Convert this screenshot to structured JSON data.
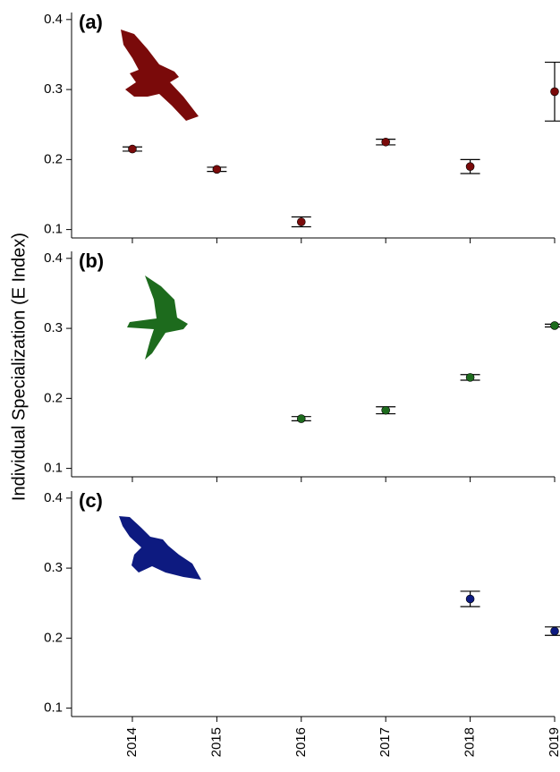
{
  "chart_data": [
    {
      "type": "scatter",
      "label": "(a)",
      "ylabel": "Individual Specialization (E Index)",
      "x": [
        2014,
        2015,
        2016,
        2017,
        2018,
        2019
      ],
      "series": [
        {
          "color": "#7a0a0a",
          "values": [
            0.215,
            0.186,
            0.111,
            0.225,
            0.19,
            0.297
          ],
          "errors": [
            0.003,
            0.003,
            0.007,
            0.004,
            0.01,
            0.042
          ]
        }
      ],
      "xlim": [
        2013.28,
        2019
      ],
      "xticks": [
        2014,
        2015,
        2016,
        2017,
        2018,
        2019
      ],
      "ylim": [
        0.088,
        0.41
      ],
      "yticks": [
        0.1,
        0.2,
        0.3,
        0.4
      ]
    },
    {
      "type": "scatter",
      "label": "(b)",
      "x": [
        2016,
        2017,
        2018,
        2019
      ],
      "series": [
        {
          "color": "#1d6b1d",
          "values": [
            0.171,
            0.183,
            0.23,
            0.304
          ],
          "errors": [
            0.003,
            0.005,
            0.004,
            0.002
          ]
        }
      ],
      "xlim": [
        2013.28,
        2019
      ],
      "xticks": [
        2014,
        2015,
        2016,
        2017,
        2018,
        2019
      ],
      "ylim": [
        0.088,
        0.41
      ],
      "yticks": [
        0.1,
        0.2,
        0.3,
        0.4
      ]
    },
    {
      "type": "scatter",
      "label": "(c)",
      "x": [
        2018,
        2019
      ],
      "series": [
        {
          "color": "#0d1a80",
          "values": [
            0.256,
            0.21
          ],
          "errors": [
            0.011,
            0.006
          ]
        }
      ],
      "xlim": [
        2013.28,
        2019
      ],
      "xticks": [
        2014,
        2015,
        2016,
        2017,
        2018,
        2019
      ],
      "ylim": [
        0.088,
        0.41
      ],
      "yticks": [
        0.1,
        0.2,
        0.3,
        0.4
      ]
    }
  ]
}
